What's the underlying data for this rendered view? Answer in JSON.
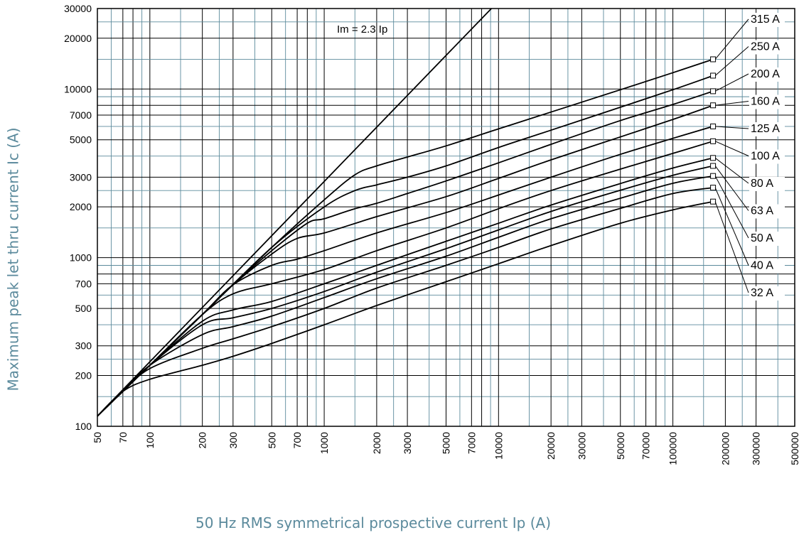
{
  "chart_data": {
    "type": "line",
    "xlabel": "50 Hz RMS symmetrical prospective current Ip (A)",
    "ylabel": "Maximum peak let thru current Ic (A)",
    "xscale": "log",
    "yscale": "log",
    "xlim": [
      50,
      500000
    ],
    "ylim": [
      100,
      30000
    ],
    "grid": true,
    "x_ticks": [
      "50",
      "70",
      "100",
      "200",
      "300",
      "500",
      "700",
      "1000",
      "2000",
      "3000",
      "5000",
      "7000",
      "10000",
      "20000",
      "30000",
      "50000",
      "70000",
      "100000",
      "200000",
      "300000",
      "500000"
    ],
    "y_ticks": [
      "100",
      "200",
      "300",
      "500",
      "700",
      "1000",
      "2000",
      "3000",
      "5000",
      "7000",
      "10000",
      "20000",
      "30000"
    ],
    "annotation": "Im = 2.3 Ip",
    "reference_line": {
      "x": [
        50,
        9100
      ],
      "y": [
        115,
        30000
      ]
    },
    "series": [
      {
        "name": "315 A",
        "x": [
          50,
          70,
          100,
          200,
          500,
          1000,
          1500,
          2000,
          3000,
          5000,
          10000,
          20000,
          50000,
          100000,
          170000
        ],
        "y": [
          115,
          161,
          230,
          460,
          1150,
          2200,
          3100,
          3500,
          3950,
          4600,
          5800,
          7300,
          9900,
          12500,
          15000
        ],
        "end_marker": [
          170000,
          15000
        ]
      },
      {
        "name": "250 A",
        "x": [
          50,
          70,
          100,
          200,
          500,
          1000,
          1500,
          2000,
          3000,
          5000,
          10000,
          20000,
          50000,
          100000,
          170000
        ],
        "y": [
          115,
          161,
          230,
          460,
          1150,
          2000,
          2500,
          2700,
          3000,
          3500,
          4500,
          5700,
          7800,
          9900,
          12000
        ],
        "end_marker": [
          170000,
          12000
        ]
      },
      {
        "name": "200 A",
        "x": [
          50,
          70,
          100,
          200,
          300,
          500,
          800,
          1000,
          1500,
          2000,
          3000,
          5000,
          10000,
          20000,
          50000,
          100000,
          170000
        ],
        "y": [
          115,
          161,
          230,
          460,
          690,
          1100,
          1600,
          1700,
          1950,
          2100,
          2400,
          2850,
          3650,
          4700,
          6500,
          8100,
          9700
        ],
        "end_marker": [
          170000,
          9700
        ]
      },
      {
        "name": "160 A",
        "x": [
          50,
          70,
          100,
          200,
          300,
          500,
          700,
          1000,
          2000,
          5000,
          10000,
          20000,
          50000,
          100000,
          170000
        ],
        "y": [
          115,
          161,
          230,
          460,
          690,
          1050,
          1300,
          1400,
          1750,
          2300,
          2950,
          3800,
          5200,
          6600,
          8000
        ],
        "end_marker": [
          170000,
          8000
        ]
      },
      {
        "name": "125 A",
        "x": [
          50,
          70,
          100,
          200,
          300,
          500,
          700,
          1000,
          2000,
          5000,
          10000,
          20000,
          50000,
          100000,
          170000
        ],
        "y": [
          115,
          161,
          230,
          460,
          690,
          900,
          980,
          1100,
          1400,
          1850,
          2350,
          3000,
          4100,
          5100,
          6000
        ],
        "end_marker": [
          170000,
          6000
        ]
      },
      {
        "name": "100 A",
        "x": [
          50,
          70,
          100,
          200,
          300,
          500,
          1000,
          2000,
          5000,
          10000,
          20000,
          50000,
          100000,
          170000
        ],
        "y": [
          115,
          161,
          230,
          460,
          610,
          700,
          850,
          1100,
          1500,
          1950,
          2500,
          3350,
          4150,
          4900
        ],
        "end_marker": [
          170000,
          4900
        ]
      },
      {
        "name": "80 A",
        "x": [
          50,
          70,
          100,
          200,
          300,
          500,
          1000,
          2000,
          5000,
          10000,
          20000,
          50000,
          100000,
          170000
        ],
        "y": [
          115,
          161,
          230,
          420,
          490,
          550,
          700,
          900,
          1250,
          1600,
          2050,
          2750,
          3400,
          3900
        ],
        "end_marker": [
          170000,
          3900
        ]
      },
      {
        "name": "63 A",
        "x": [
          50,
          70,
          100,
          200,
          300,
          500,
          1000,
          2000,
          5000,
          10000,
          20000,
          50000,
          100000,
          170000
        ],
        "y": [
          115,
          161,
          230,
          400,
          440,
          500,
          630,
          820,
          1130,
          1460,
          1880,
          2510,
          3080,
          3500
        ],
        "end_marker": [
          170000,
          3500
        ]
      },
      {
        "name": "50 A",
        "x": [
          50,
          70,
          100,
          200,
          300,
          500,
          1000,
          2000,
          5000,
          10000,
          20000,
          50000,
          100000,
          170000
        ],
        "y": [
          115,
          161,
          230,
          350,
          390,
          450,
          580,
          750,
          1020,
          1320,
          1700,
          2250,
          2760,
          3050
        ],
        "end_marker": [
          170000,
          3050
        ]
      },
      {
        "name": "40 A",
        "x": [
          50,
          70,
          100,
          200,
          300,
          500,
          1000,
          2000,
          5000,
          10000,
          20000,
          50000,
          100000,
          170000
        ],
        "y": [
          115,
          161,
          220,
          290,
          330,
          390,
          500,
          660,
          900,
          1150,
          1480,
          1960,
          2400,
          2600
        ],
        "end_marker": [
          170000,
          2600
        ]
      },
      {
        "name": "32 A",
        "x": [
          50,
          70,
          100,
          200,
          300,
          500,
          1000,
          2000,
          5000,
          10000,
          20000,
          50000,
          100000,
          170000
        ],
        "y": [
          115,
          161,
          190,
          230,
          260,
          310,
          400,
          520,
          720,
          920,
          1180,
          1600,
          1920,
          2150
        ],
        "end_marker": [
          170000,
          2150
        ]
      }
    ],
    "legend_placement": "right",
    "label_rows": [
      "315 A",
      "250 A",
      "200 A",
      "160 A",
      "125 A",
      "100 A",
      "80 A",
      "63 A",
      "50 A",
      "40 A",
      "32 A"
    ]
  }
}
